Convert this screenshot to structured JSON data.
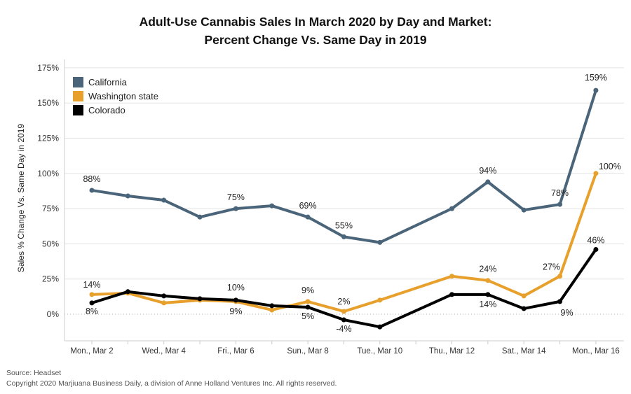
{
  "chart_data": {
    "type": "line",
    "title_line1": "Adult-Use Cannabis Sales In March 2020 by Day and Market:",
    "title_line2": "Percent Change Vs. Same Day in 2019",
    "ylabel": "Sales % Change Vs. Same Day in 2019",
    "xlabel": "",
    "ylim": [
      -15,
      180
    ],
    "yticks": [
      "0%",
      "25%",
      "50%",
      "75%",
      "100%",
      "125%",
      "150%",
      "175%"
    ],
    "ytick_values": [
      0,
      25,
      50,
      75,
      100,
      125,
      150,
      175
    ],
    "x": [
      "Mar 2",
      "Mar 3",
      "Mar 4",
      "Mar 5",
      "Mar 6",
      "Mar 7",
      "Mar 8",
      "Mar 9",
      "Mar 10",
      "Mar 11",
      "Mar 12",
      "Mar 13",
      "Mar 14",
      "Mar 15",
      "Mar 16"
    ],
    "xtick_labels": [
      "Mon., Mar 2",
      "",
      "Wed., Mar 4",
      "",
      "Fri., Mar 6",
      "",
      "Sun., Mar 8",
      "",
      "Tue., Mar 10",
      "",
      "Thu., Mar 12",
      "",
      "Sat., Mar 14",
      "",
      "Mon., Mar 16"
    ],
    "grid": true,
    "legend_position": "top-left",
    "series": [
      {
        "name": "California",
        "color": "#4a6479",
        "values": [
          88,
          84,
          81,
          69,
          75,
          77,
          69,
          55,
          51,
          null,
          75,
          94,
          74,
          78,
          159
        ],
        "labels": [
          "88%",
          "",
          "",
          "",
          "75%",
          "",
          "69%",
          "55%",
          "",
          "",
          "",
          "94%",
          "",
          "78%",
          "159%"
        ]
      },
      {
        "name": "Washington state",
        "color": "#e8a02c",
        "values": [
          14,
          15,
          8,
          10,
          9,
          3,
          9,
          2,
          10,
          null,
          27,
          24,
          13,
          27,
          100
        ],
        "labels": [
          "14%",
          "",
          "",
          "",
          "9%",
          "",
          "9%",
          "2%",
          "",
          "",
          "",
          "24%",
          "",
          "27%",
          "100%"
        ]
      },
      {
        "name": "Colorado",
        "color": "#000000",
        "values": [
          8,
          16,
          13,
          11,
          10,
          6,
          5,
          -4,
          -9,
          null,
          14,
          14,
          4,
          9,
          46
        ],
        "labels": [
          "8%",
          "",
          "",
          "",
          "10%",
          "",
          "5%",
          "-4%",
          "",
          "",
          "",
          "14%",
          "",
          "9%",
          "46%"
        ]
      }
    ]
  },
  "footer": {
    "source": "Source: Headset",
    "copyright": "Copyright 2020 Marjiuana Business Daily, a division of Anne Holland Ventures Inc. All rights reserved."
  }
}
